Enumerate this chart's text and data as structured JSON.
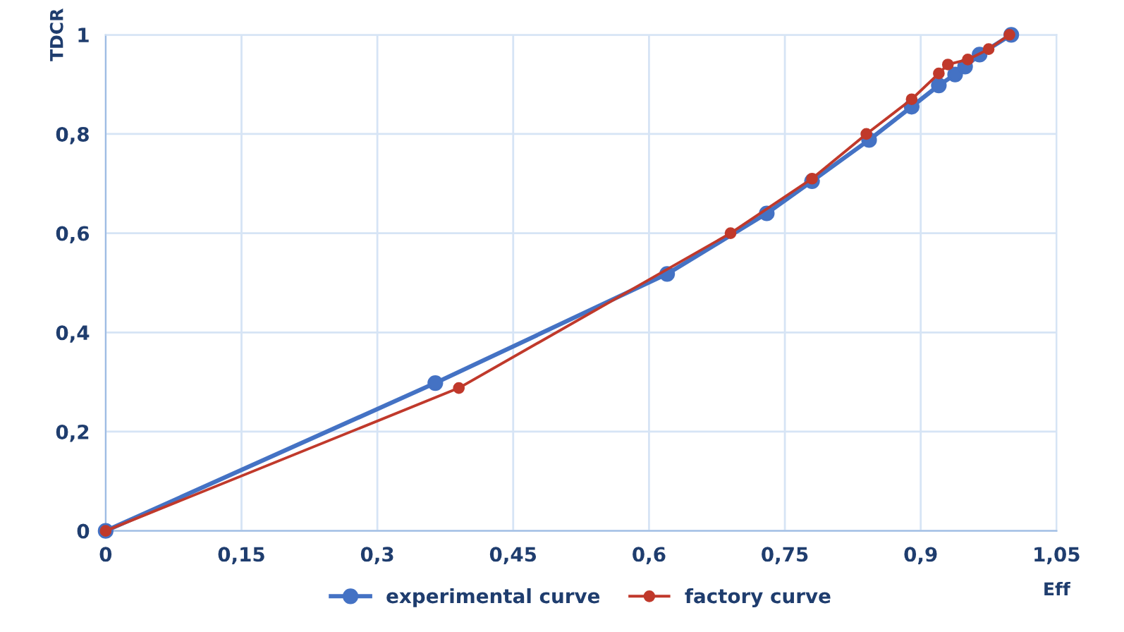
{
  "chart_data": {
    "type": "line",
    "xlabel": "Eff",
    "ylabel": "TDCR",
    "xlim": [
      0,
      1.05
    ],
    "ylim": [
      0,
      1
    ],
    "xticks": [
      {
        "value": 0,
        "label": "0"
      },
      {
        "value": 0.15,
        "label": "0,15"
      },
      {
        "value": 0.3,
        "label": "0,3"
      },
      {
        "value": 0.45,
        "label": "0,45"
      },
      {
        "value": 0.6,
        "label": "0,6"
      },
      {
        "value": 0.75,
        "label": "0,75"
      },
      {
        "value": 0.9,
        "label": "0,9"
      },
      {
        "value": 1.05,
        "label": "1,05"
      }
    ],
    "yticks": [
      {
        "value": 0,
        "label": "0"
      },
      {
        "value": 0.2,
        "label": "0,2"
      },
      {
        "value": 0.4,
        "label": "0,4"
      },
      {
        "value": 0.6,
        "label": "0,6"
      },
      {
        "value": 0.8,
        "label": "0,8"
      },
      {
        "value": 1,
        "label": "1"
      }
    ],
    "grid": true,
    "legend": "bottom",
    "marker": "circle",
    "line_style": "solid",
    "series": [
      {
        "name": "experimental curve",
        "color": "#4472c4",
        "x": [
          0,
          0.364,
          0.62,
          0.73,
          0.78,
          0.843,
          0.89,
          0.92,
          0.938,
          0.949,
          0.965,
          1.0
        ],
        "values": [
          0,
          0.298,
          0.518,
          0.64,
          0.705,
          0.788,
          0.855,
          0.898,
          0.92,
          0.936,
          0.96,
          1.0
        ]
      },
      {
        "name": "factory curve",
        "color": "#c0392b",
        "x": [
          0,
          0.39,
          0.69,
          0.78,
          0.84,
          0.89,
          0.92,
          0.93,
          0.952,
          0.975,
          0.998
        ],
        "values": [
          0,
          0.288,
          0.6,
          0.71,
          0.8,
          0.87,
          0.922,
          0.94,
          0.95,
          0.971,
          1.0
        ]
      }
    ]
  }
}
